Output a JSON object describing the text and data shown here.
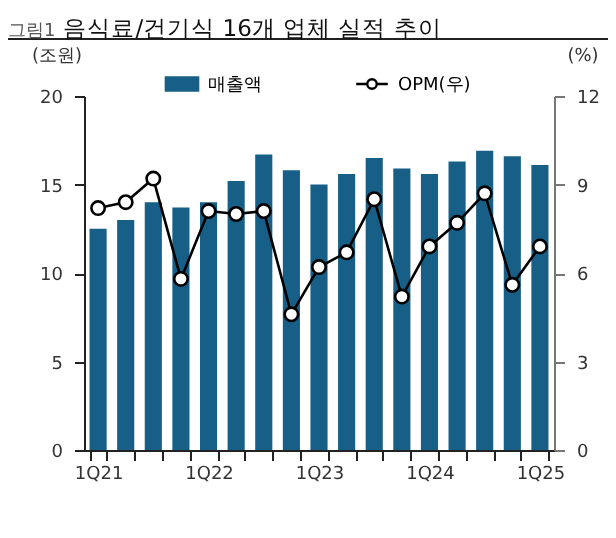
{
  "chart_data": {
    "type": "bar",
    "title": "음식료/건기식 16개 업체 실적 추이",
    "annotations": [
      "그림1"
    ],
    "ylabel": "(조원)",
    "y2label": "(%)",
    "categories": [
      "1Q21",
      null,
      null,
      null,
      "1Q22",
      null,
      null,
      null,
      "1Q23",
      null,
      null,
      null,
      "1Q24",
      null,
      null,
      null,
      "1Q25"
    ],
    "series": [
      {
        "name": "매출액",
        "color": "#175f86",
        "values": [
          12.5,
          13.0,
          14.0,
          13.7,
          14.0,
          15.2,
          16.7,
          15.8,
          15.0,
          15.6,
          16.5,
          15.9,
          15.6,
          16.3,
          16.9,
          16.6,
          16.1
        ]
      },
      {
        "name": "OPM(우)",
        "type": "line",
        "axis": "y2",
        "color": "#000000",
        "marker": "circle",
        "values": [
          8.2,
          8.4,
          9.2,
          5.8,
          8.1,
          8.0,
          8.1,
          4.6,
          6.2,
          6.7,
          8.5,
          5.2,
          6.9,
          7.7,
          8.7,
          5.6,
          6.9
        ]
      }
    ],
    "ylim": [
      0,
      20
    ],
    "yticks": [
      0,
      5,
      10,
      15,
      20
    ],
    "y2lim": [
      0,
      12
    ],
    "y2ticks": [
      0,
      3,
      6,
      9,
      12
    ],
    "grid": false,
    "legend": "top"
  }
}
